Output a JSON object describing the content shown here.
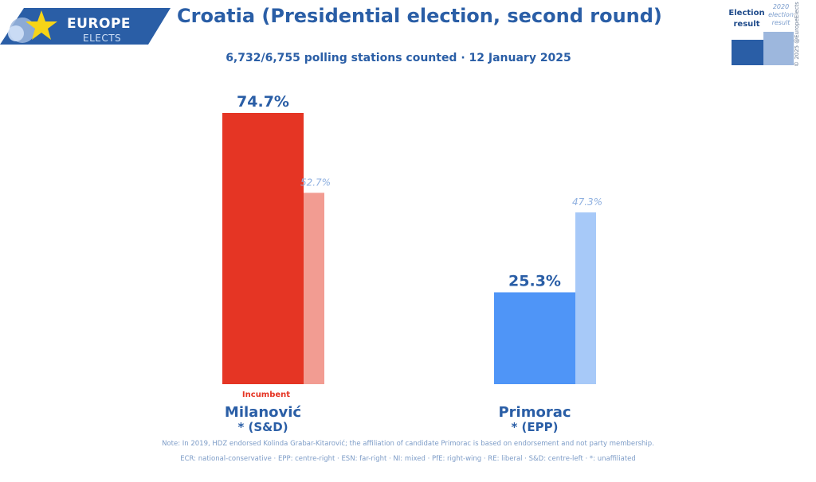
{
  "logo": {
    "word1": "EUROPE",
    "word2": "ELECTS",
    "star_color": "#f6d417",
    "banner_color": "#2a5ea6"
  },
  "header": {
    "title": "Croatia (Presidential election, second round)",
    "subtitle": "6,732/6,755 polling stations counted · 12 January 2025"
  },
  "legend": {
    "current_label": "Election result",
    "previous_label": "2020 election result",
    "current_color": "#2a5ea6",
    "previous_color": "#9db7dd",
    "copyright": "© 2025 @EuropeElects"
  },
  "chart_data": {
    "type": "bar",
    "title": "Croatia (Presidential election, second round)",
    "subtitle": "6,732/6,755 polling stations counted · 12 January 2025",
    "categories": [
      "Milanović",
      "Primorac"
    ],
    "parties": [
      "* (S&D)",
      "* (EPP)"
    ],
    "series": [
      {
        "name": "Election result",
        "values": [
          74.7,
          25.3
        ],
        "labels": [
          "74.7%",
          "25.3%"
        ],
        "colors": [
          "#e53524",
          "#4f95f7"
        ]
      },
      {
        "name": "2020 election result",
        "values": [
          52.7,
          47.3
        ],
        "labels": [
          "52.7%",
          "47.3%"
        ],
        "colors": [
          "#f29c92",
          "#a7c9f8"
        ]
      }
    ],
    "annotations": [
      {
        "category": "Milanović",
        "text": "Incumbent"
      }
    ],
    "ylim": [
      0,
      80
    ],
    "grid": false,
    "legend": "top-right"
  },
  "footer": {
    "note": "Note: In 2019, HDZ endorsed Kolinda Grabar-Kitarović; the affiliation of candidate Primorac is based on endorsement and not party membership.",
    "legend_note": "ECR: national-conservative · EPP: centre-right · ESN: far-right · NI: mixed · PfE: right-wing · RE: liberal · S&D: centre-left · *: unaffiliated"
  }
}
